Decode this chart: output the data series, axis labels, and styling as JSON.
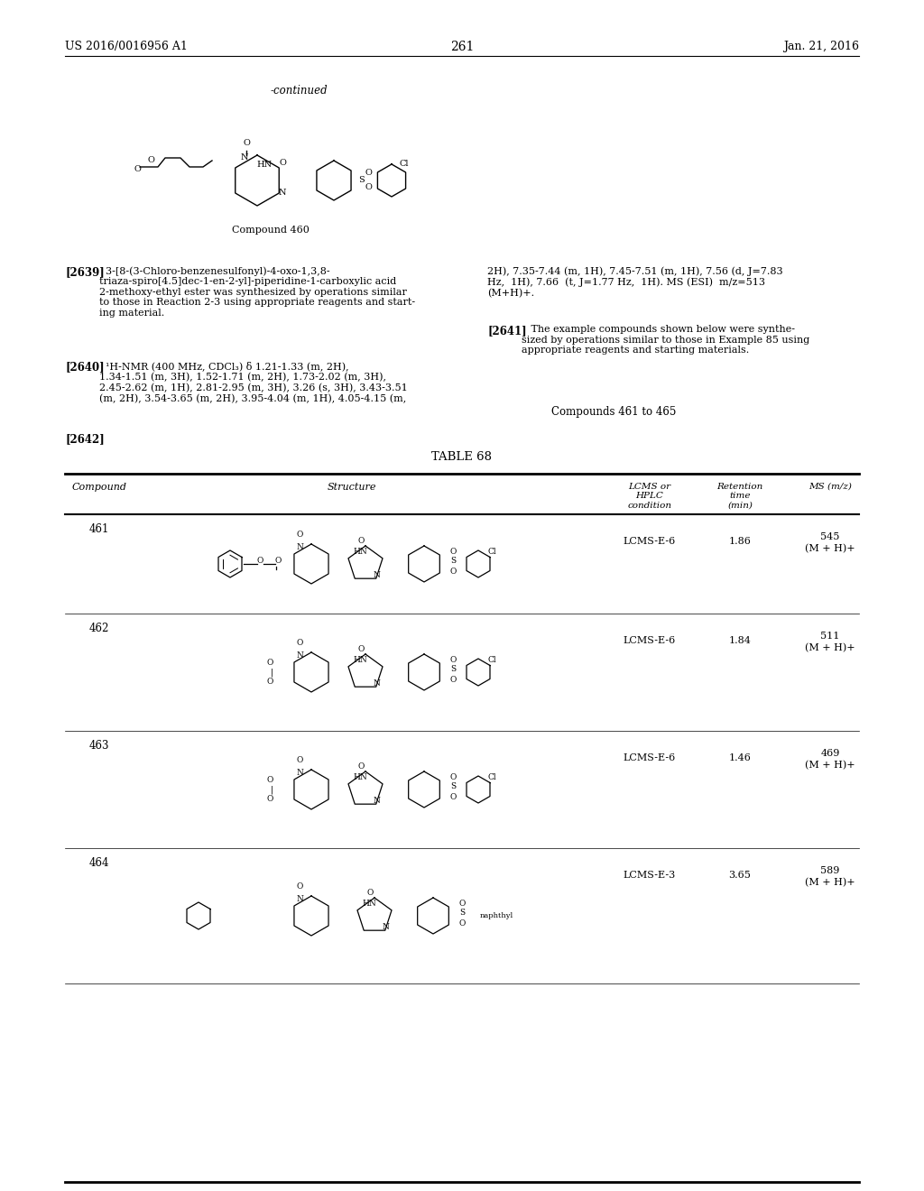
{
  "page_title_left": "US 2016/0016956 A1",
  "page_title_right": "Jan. 21, 2016",
  "page_number": "261",
  "continued_label": "-continued",
  "compound460_label": "Compound 460",
  "paragraph2639_bold": "[2639]",
  "paragraph2639_text": "  3-[8-(3-Chloro-benzenesulfonyl)-4-oxo-1,3,8-triaza-spiro[4.5]dec-1-en-2-yl]-piperidine-1-carboxylic acid 2-methoxy-ethyl ester was synthesized by operations similar to those in Reaction 2-3 using appropriate reagents and starting material.",
  "paragraph2640_bold": "[2640]",
  "paragraph2640_text": "  ¹H-NMR (400 MHz, CDCl₃) δ 1.21-1.33 (m, 2H), 1.34-1.51 (m, 3H), 1.52-1.71 (m, 2H), 1.73-2.02 (m, 3H), 2.45-2.62 (m, 1H), 2.81-2.95 (m, 3H), 3.26 (s, 3H), 3.43-3.51 (m, 2H), 3.54-3.65 (m, 2H), 3.95-4.04 (m, 1H), 4.05-4.15 (m,",
  "paragraph2640_text2": "2H), 7.35-7.44 (m, 1H), 7.45-7.51 (m, 1H), 7.56 (d, J=7.83 Hz, 1H), 7.66  (t, J=1.77 Hz, 1H). MS (ESI)  m/z=513 (M+H)+.",
  "paragraph2641_bold": "[2641]",
  "paragraph2641_text": "   The example compounds shown below were synthesized by operations similar to those in Example 85 using appropriate reagents and starting materials.",
  "compounds_range": "Compounds 461 to 465",
  "paragraph2642_bold": "[2642]",
  "table_title": "TABLE 68",
  "table_headers": [
    "Compound",
    "Structure",
    "LCMS or\nHPLC\ncondition",
    "Retention\ntime\n(min)",
    "MS (m/z)"
  ],
  "table_rows": [
    {
      "compound": "461",
      "lcms": "LCMS-E-6",
      "retention": "1.86",
      "ms": "545\n(M + H)+"
    },
    {
      "compound": "462",
      "lcms": "LCMS-E-6",
      "retention": "1.84",
      "ms": "511\n(M + H)+"
    },
    {
      "compound": "463",
      "lcms": "LCMS-E-6",
      "retention": "1.46",
      "ms": "469\n(M + H)+"
    },
    {
      "compound": "464",
      "lcms": "LCMS-E-3",
      "retention": "3.65",
      "ms": "589\n(M + H)+"
    }
  ],
  "bg_color": "#ffffff",
  "text_color": "#000000",
  "font_size_header": 8.5,
  "font_size_body": 8.0,
  "font_size_small": 7.5
}
